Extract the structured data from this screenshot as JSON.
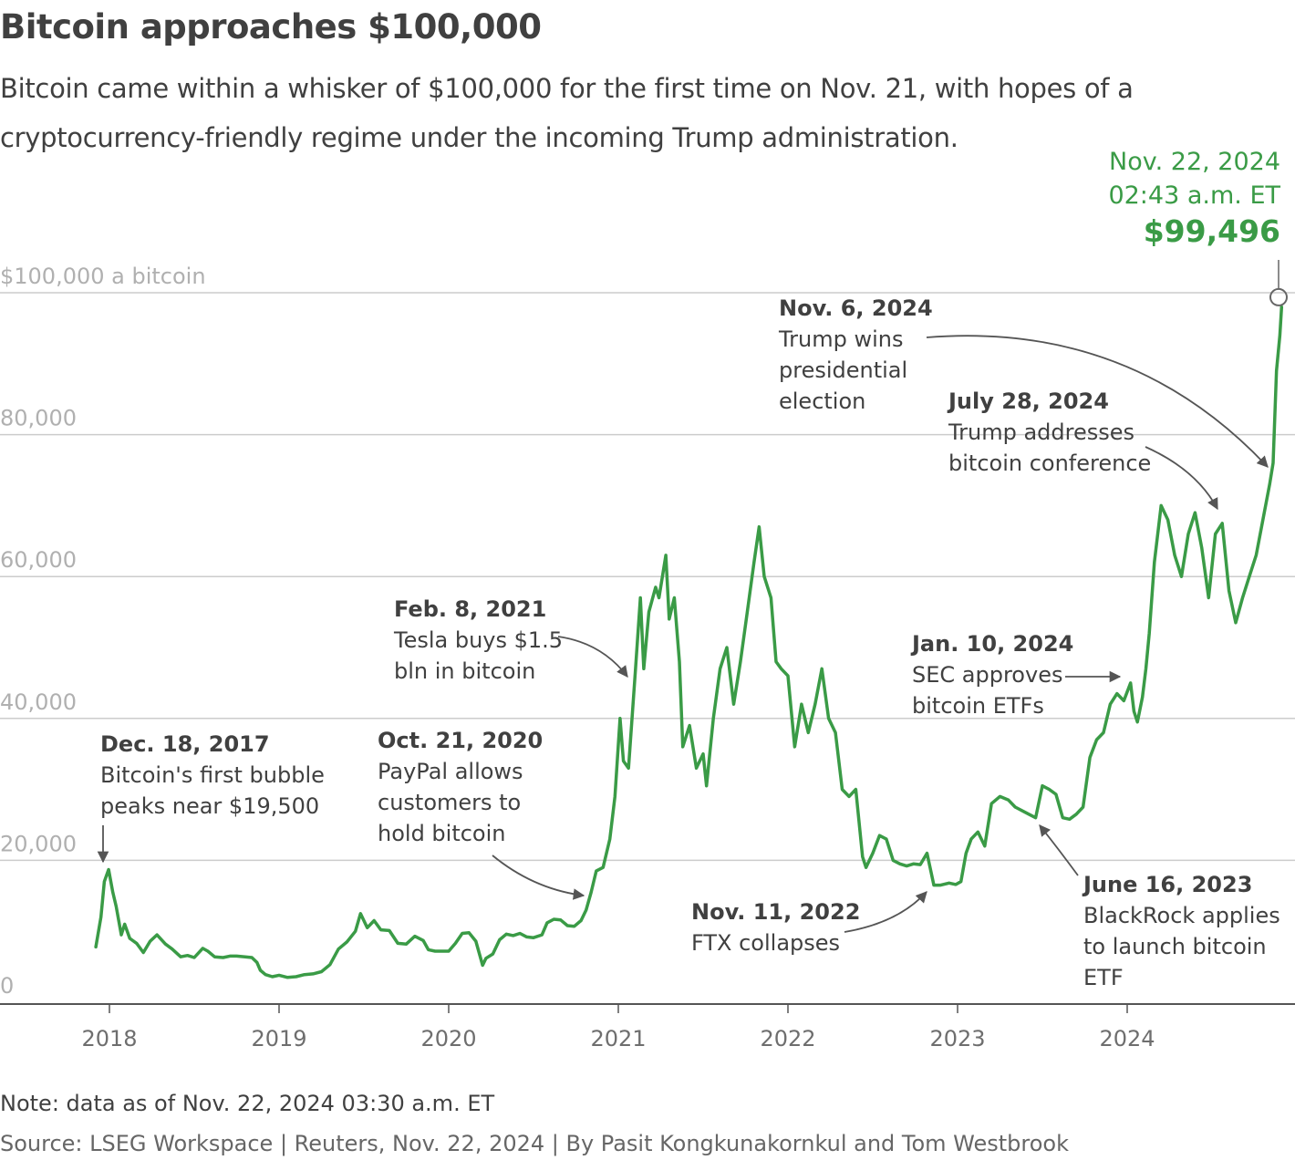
{
  "title": "Bitcoin approaches $100,000",
  "subtitle": "Bitcoin came within a whisker of $100,000 for the first time on Nov. 21, with hopes of a cryptocurrency-friendly regime under the incoming Trump administration.",
  "note": "Note: data as of Nov. 22, 2024 03:30 a.m. ET",
  "source": "Source: LSEG Workspace | Reuters, Nov. 22, 2024 | By Pasit Kongkunakornkul and Tom Westbrook",
  "colors": {
    "line": "#3a9b46",
    "grid": "#cccccc",
    "annotation": "#555555"
  },
  "chart_data": {
    "type": "line",
    "ylim": [
      0,
      100000
    ],
    "xlim": [
      2017.9,
      2024.9
    ],
    "y_ticks": [
      {
        "value": 100000,
        "label": "$100,000 a bitcoin"
      },
      {
        "value": 80000,
        "label": "80,000"
      },
      {
        "value": 60000,
        "label": "60,000"
      },
      {
        "value": 40000,
        "label": "40,000"
      },
      {
        "value": 20000,
        "label": "20,000"
      },
      {
        "value": 0,
        "label": "0"
      }
    ],
    "x_ticks": [
      {
        "value": 2018,
        "label": "2018"
      },
      {
        "value": 2019,
        "label": "2019"
      },
      {
        "value": 2020,
        "label": "2020"
      },
      {
        "value": 2021,
        "label": "2021"
      },
      {
        "value": 2022,
        "label": "2022"
      },
      {
        "value": 2023,
        "label": "2023"
      },
      {
        "value": 2024,
        "label": "2024"
      }
    ],
    "grid": true,
    "series": [
      {
        "points": [
          [
            2017.92,
            7800
          ],
          [
            2017.95,
            12000
          ],
          [
            2017.97,
            17000
          ],
          [
            2017.995,
            18700
          ],
          [
            2018.02,
            15500
          ],
          [
            2018.04,
            13500
          ],
          [
            2018.07,
            9500
          ],
          [
            2018.09,
            11000
          ],
          [
            2018.12,
            9000
          ],
          [
            2018.16,
            8300
          ],
          [
            2018.2,
            7000
          ],
          [
            2018.24,
            8600
          ],
          [
            2018.28,
            9500
          ],
          [
            2018.33,
            8200
          ],
          [
            2018.37,
            7500
          ],
          [
            2018.42,
            6400
          ],
          [
            2018.46,
            6600
          ],
          [
            2018.5,
            6300
          ],
          [
            2018.55,
            7600
          ],
          [
            2018.58,
            7200
          ],
          [
            2018.62,
            6400
          ],
          [
            2018.67,
            6300
          ],
          [
            2018.71,
            6500
          ],
          [
            2018.75,
            6500
          ],
          [
            2018.8,
            6400
          ],
          [
            2018.84,
            6300
          ],
          [
            2018.87,
            5600
          ],
          [
            2018.89,
            4500
          ],
          [
            2018.92,
            3900
          ],
          [
            2018.96,
            3600
          ],
          [
            2019.0,
            3800
          ],
          [
            2019.05,
            3500
          ],
          [
            2019.1,
            3600
          ],
          [
            2019.15,
            3900
          ],
          [
            2019.2,
            4000
          ],
          [
            2019.25,
            4300
          ],
          [
            2019.3,
            5300
          ],
          [
            2019.35,
            7500
          ],
          [
            2019.4,
            8500
          ],
          [
            2019.45,
            10000
          ],
          [
            2019.48,
            12500
          ],
          [
            2019.52,
            10500
          ],
          [
            2019.56,
            11500
          ],
          [
            2019.6,
            10200
          ],
          [
            2019.65,
            10100
          ],
          [
            2019.7,
            8300
          ],
          [
            2019.75,
            8200
          ],
          [
            2019.8,
            9300
          ],
          [
            2019.85,
            8700
          ],
          [
            2019.88,
            7400
          ],
          [
            2019.92,
            7200
          ],
          [
            2019.96,
            7200
          ],
          [
            2020.0,
            7200
          ],
          [
            2020.04,
            8300
          ],
          [
            2020.08,
            9700
          ],
          [
            2020.12,
            9800
          ],
          [
            2020.16,
            8600
          ],
          [
            2020.2,
            5200
          ],
          [
            2020.22,
            6200
          ],
          [
            2020.26,
            6800
          ],
          [
            2020.3,
            8800
          ],
          [
            2020.34,
            9600
          ],
          [
            2020.38,
            9400
          ],
          [
            2020.42,
            9700
          ],
          [
            2020.46,
            9200
          ],
          [
            2020.5,
            9100
          ],
          [
            2020.55,
            9500
          ],
          [
            2020.58,
            11200
          ],
          [
            2020.62,
            11700
          ],
          [
            2020.66,
            11600
          ],
          [
            2020.7,
            10800
          ],
          [
            2020.74,
            10700
          ],
          [
            2020.78,
            11500
          ],
          [
            2020.81,
            13000
          ],
          [
            2020.84,
            15500
          ],
          [
            2020.87,
            18500
          ],
          [
            2020.91,
            19000
          ],
          [
            2020.95,
            23000
          ],
          [
            2020.98,
            29000
          ],
          [
            2021.01,
            40000
          ],
          [
            2021.03,
            34000
          ],
          [
            2021.06,
            33000
          ],
          [
            2021.1,
            46500
          ],
          [
            2021.13,
            57000
          ],
          [
            2021.15,
            47000
          ],
          [
            2021.18,
            55000
          ],
          [
            2021.22,
            58500
          ],
          [
            2021.24,
            57000
          ],
          [
            2021.28,
            63000
          ],
          [
            2021.3,
            54000
          ],
          [
            2021.33,
            57000
          ],
          [
            2021.36,
            48000
          ],
          [
            2021.38,
            36000
          ],
          [
            2021.42,
            39000
          ],
          [
            2021.46,
            33000
          ],
          [
            2021.5,
            35000
          ],
          [
            2021.52,
            30500
          ],
          [
            2021.56,
            40000
          ],
          [
            2021.6,
            47000
          ],
          [
            2021.64,
            50000
          ],
          [
            2021.68,
            42000
          ],
          [
            2021.72,
            48000
          ],
          [
            2021.76,
            55000
          ],
          [
            2021.8,
            62000
          ],
          [
            2021.83,
            67000
          ],
          [
            2021.86,
            60000
          ],
          [
            2021.9,
            57000
          ],
          [
            2021.93,
            48000
          ],
          [
            2021.96,
            47000
          ],
          [
            2022.0,
            46000
          ],
          [
            2022.04,
            36000
          ],
          [
            2022.08,
            42000
          ],
          [
            2022.12,
            38000
          ],
          [
            2022.16,
            42000
          ],
          [
            2022.2,
            47000
          ],
          [
            2022.24,
            40000
          ],
          [
            2022.28,
            38000
          ],
          [
            2022.32,
            30000
          ],
          [
            2022.36,
            29000
          ],
          [
            2022.4,
            30000
          ],
          [
            2022.44,
            20500
          ],
          [
            2022.46,
            19000
          ],
          [
            2022.5,
            21000
          ],
          [
            2022.54,
            23500
          ],
          [
            2022.58,
            23000
          ],
          [
            2022.62,
            20000
          ],
          [
            2022.66,
            19500
          ],
          [
            2022.7,
            19200
          ],
          [
            2022.74,
            19500
          ],
          [
            2022.78,
            19400
          ],
          [
            2022.82,
            21000
          ],
          [
            2022.86,
            16500
          ],
          [
            2022.9,
            16500
          ],
          [
            2022.95,
            16800
          ],
          [
            2022.99,
            16600
          ],
          [
            2023.02,
            17000
          ],
          [
            2023.05,
            21000
          ],
          [
            2023.08,
            23000
          ],
          [
            2023.12,
            24000
          ],
          [
            2023.16,
            22000
          ],
          [
            2023.2,
            28000
          ],
          [
            2023.25,
            29000
          ],
          [
            2023.3,
            28500
          ],
          [
            2023.34,
            27500
          ],
          [
            2023.38,
            27000
          ],
          [
            2023.42,
            26500
          ],
          [
            2023.46,
            26000
          ],
          [
            2023.5,
            30500
          ],
          [
            2023.54,
            30000
          ],
          [
            2023.58,
            29300
          ],
          [
            2023.62,
            26000
          ],
          [
            2023.66,
            25800
          ],
          [
            2023.7,
            26500
          ],
          [
            2023.74,
            27500
          ],
          [
            2023.78,
            34500
          ],
          [
            2023.82,
            37000
          ],
          [
            2023.86,
            38000
          ],
          [
            2023.9,
            42000
          ],
          [
            2023.94,
            43500
          ],
          [
            2023.98,
            42500
          ],
          [
            2024.02,
            45000
          ],
          [
            2024.04,
            41000
          ],
          [
            2024.06,
            39500
          ],
          [
            2024.09,
            43000
          ],
          [
            2024.11,
            47000
          ],
          [
            2024.13,
            52000
          ],
          [
            2024.16,
            62000
          ],
          [
            2024.2,
            70000
          ],
          [
            2024.24,
            68000
          ],
          [
            2024.28,
            63000
          ],
          [
            2024.32,
            60000
          ],
          [
            2024.36,
            66000
          ],
          [
            2024.4,
            69000
          ],
          [
            2024.44,
            64000
          ],
          [
            2024.48,
            57000
          ],
          [
            2024.52,
            66000
          ],
          [
            2024.56,
            67500
          ],
          [
            2024.6,
            58000
          ],
          [
            2024.64,
            53500
          ],
          [
            2024.68,
            57000
          ],
          [
            2024.72,
            60000
          ],
          [
            2024.76,
            63000
          ],
          [
            2024.8,
            68000
          ],
          [
            2024.84,
            73000
          ],
          [
            2024.86,
            76000
          ],
          [
            2024.88,
            89000
          ],
          [
            2024.9,
            94000
          ],
          [
            2024.91,
            98000
          ]
        ]
      }
    ],
    "latest_point": {
      "x": 2024.91,
      "y": 99496,
      "date": "Nov. 22, 2024",
      "time": "02:43 a.m. ET",
      "value_label": "$99,496"
    },
    "annotations": [
      {
        "id": "dec2017",
        "x": 2017.96,
        "date": "Dec. 18, 2017",
        "lines": [
          "Bitcoin's first bubble",
          "peaks near $19,500"
        ]
      },
      {
        "id": "oct2020",
        "x": 2020.81,
        "date": "Oct. 21, 2020",
        "lines": [
          "PayPal allows",
          "customers to",
          "hold bitcoin"
        ]
      },
      {
        "id": "feb2021",
        "x": 2021.1,
        "date": "Feb. 8, 2021",
        "lines": [
          "Tesla buys $1.5",
          "bln in bitcoin"
        ]
      },
      {
        "id": "nov2022",
        "x": 2022.86,
        "date": "Nov. 11, 2022",
        "lines": [
          "FTX collapses"
        ]
      },
      {
        "id": "jun2023",
        "x": 2023.46,
        "date": "June 16, 2023",
        "lines": [
          "BlackRock applies",
          "to launch bitcoin",
          "ETF"
        ]
      },
      {
        "id": "jan2024",
        "x": 2024.03,
        "date": "Jan. 10, 2024",
        "lines": [
          "SEC approves",
          "bitcoin ETFs"
        ]
      },
      {
        "id": "jul2024",
        "x": 2024.57,
        "date": "July 28, 2024",
        "lines": [
          "Trump addresses",
          "bitcoin conference"
        ]
      },
      {
        "id": "nov2024",
        "x": 2024.85,
        "date": "Nov. 6, 2024",
        "lines": [
          "Trump wins",
          "presidential",
          "election"
        ]
      }
    ]
  }
}
